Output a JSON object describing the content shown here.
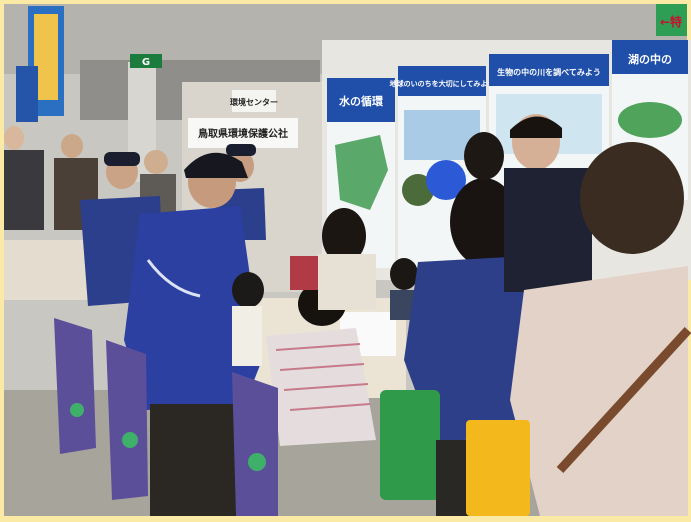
{
  "signs": {
    "booth_name": "鳥取県環境保護公社",
    "center_sign": "環境センター",
    "gate_marker": "G",
    "poster_1": "水の循環",
    "poster_2": "地球のいのちを大切にしてみよう",
    "poster_3": "生物の中の川を調べてみよう",
    "poster_4": "湖の中の",
    "banner_right": "←特"
  },
  "colors": {
    "frame": "#fbe9a6",
    "jacket": "#2c3f8c",
    "poster_header": "#1f4fa8",
    "chair_cover": "#5b4f9a"
  }
}
